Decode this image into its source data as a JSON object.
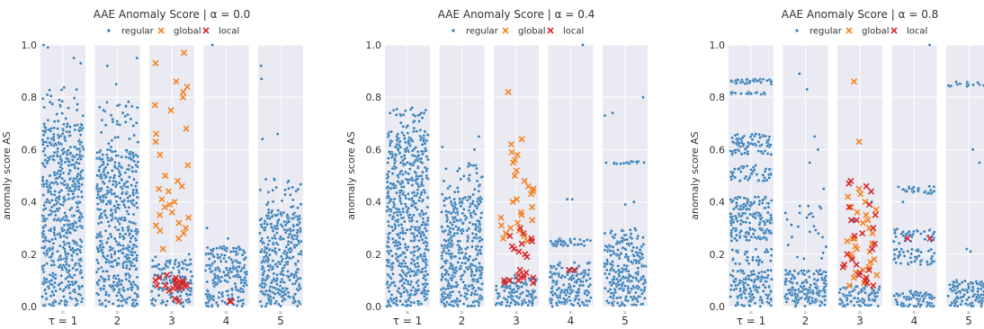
{
  "chart_data": [
    {
      "type": "scatter",
      "title": "AAE Anomaly Score | α = 0.0",
      "ylabel": "anomaly score AS",
      "ylim": [
        0.0,
        1.0
      ],
      "yticks": [
        "0.0",
        "0.2",
        "0.4",
        "0.6",
        "0.8",
        "1.0"
      ],
      "categories": [
        "τ = 1",
        "2",
        "3",
        "4",
        "5"
      ],
      "legend": {
        "placement": "top",
        "entries": [
          "regular",
          "global",
          "local"
        ]
      },
      "series": [
        {
          "name": "regular",
          "marker": "dot",
          "groups": [
            {
              "category": "τ = 1",
              "bands": [
                [
                  0.0,
                  0.7,
                  620
                ],
                [
                  0.7,
                  0.84,
                  25
                ]
              ],
              "extra": [
                0.99,
                1.0,
                0.95,
                0.93
              ]
            },
            {
              "category": "2",
              "bands": [
                [
                  0.0,
                  0.6,
                  520
                ],
                [
                  0.6,
                  0.8,
                  35
                ]
              ],
              "extra": [
                0.92,
                0.95,
                0.85
              ]
            },
            {
              "category": "3",
              "bands": [
                [
                  0.0,
                  0.18,
                  140
                ]
              ],
              "extra": [
                0.19,
                0.2
              ]
            },
            {
              "category": "4",
              "bands": [
                [
                  0.0,
                  0.23,
                  220
                ]
              ],
              "extra": [
                0.3,
                1.0,
                0.26
              ]
            },
            {
              "category": "5",
              "bands": [
                [
                  0.0,
                  0.36,
                  360
                ],
                [
                  0.36,
                  0.49,
                  30
                ]
              ],
              "extra": [
                0.92,
                0.87,
                0.66,
                0.64,
                0.02,
                0.01
              ]
            }
          ]
        },
        {
          "name": "global",
          "marker": "x",
          "groups": [
            {
              "category": "3",
              "values": [
                0.97,
                0.93,
                0.86,
                0.84,
                0.82,
                0.8,
                0.77,
                0.75,
                0.68,
                0.66,
                0.63,
                0.58,
                0.54,
                0.5,
                0.48,
                0.46,
                0.44,
                0.41,
                0.39,
                0.36,
                0.34,
                0.32,
                0.3,
                0.28,
                0.26,
                0.38,
                0.45,
                0.22,
                0.31,
                0.35,
                0.4,
                0.29
              ]
            }
          ]
        },
        {
          "name": "local",
          "marker": "x",
          "groups": [
            {
              "category": "3",
              "values": [
                0.12,
                0.11,
                0.1,
                0.09,
                0.08,
                0.08,
                0.07,
                0.09,
                0.1,
                0.06,
                0.08,
                0.07,
                0.11,
                0.09,
                0.1,
                0.08,
                0.09,
                0.07,
                0.03,
                0.02,
                0.08,
                0.1
              ]
            },
            {
              "category": "4",
              "values": [
                0.02,
                0.02
              ]
            }
          ]
        }
      ]
    },
    {
      "type": "scatter",
      "title": "AAE Anomaly Score | α = 0.4",
      "ylabel": "anomaly score AS",
      "ylim": [
        0.0,
        1.0
      ],
      "yticks": [
        "0.0",
        "0.2",
        "0.4",
        "0.6",
        "0.8",
        "1.0"
      ],
      "categories": [
        "τ = 1",
        "2",
        "3",
        "4",
        "5"
      ],
      "legend": {
        "placement": "top",
        "entries": [
          "regular",
          "global",
          "local"
        ]
      },
      "series": [
        {
          "name": "regular",
          "marker": "dot",
          "groups": [
            {
              "category": "τ = 1",
              "bands": [
                [
                  0.0,
                  0.67,
                  620
                ],
                [
                  0.67,
                  0.76,
                  25
                ]
              ],
              "extra": [
                0.75,
                0.76
              ]
            },
            {
              "category": "2",
              "bands": [
                [
                  0.0,
                  0.42,
                  420
                ],
                [
                  0.42,
                  0.55,
                  30
                ]
              ],
              "extra": [
                0.65,
                0.61,
                0.6
              ]
            },
            {
              "category": "3",
              "bands": [
                [
                  0.0,
                  0.11,
                  120
                ]
              ],
              "extra": [
                0.12
              ]
            },
            {
              "category": "4",
              "bands": [
                [
                  0.0,
                  0.17,
                  170
                ],
                [
                  0.23,
                  0.26,
                  40
                ]
              ],
              "extra": [
                0.41,
                0.41,
                1.0
              ]
            },
            {
              "category": "5",
              "bands": [
                [
                  0.0,
                  0.25,
                  250
                ],
                [
                  0.25,
                  0.3,
                  25
                ],
                [
                  0.545,
                  0.555,
                  18
                ]
              ],
              "extra": [
                0.74,
                0.73,
                0.8,
                0.4,
                0.39,
                0.01
              ]
            }
          ]
        },
        {
          "name": "global",
          "marker": "x",
          "groups": [
            {
              "category": "3",
              "values": [
                0.82,
                0.64,
                0.62,
                0.59,
                0.58,
                0.56,
                0.55,
                0.52,
                0.5,
                0.48,
                0.46,
                0.45,
                0.44,
                0.43,
                0.41,
                0.4,
                0.38,
                0.36,
                0.35,
                0.34,
                0.33,
                0.32,
                0.31,
                0.3,
                0.29,
                0.28,
                0.27,
                0.26,
                0.25
              ]
            }
          ]
        },
        {
          "name": "local",
          "marker": "x",
          "groups": [
            {
              "category": "3",
              "values": [
                0.3,
                0.28,
                0.27,
                0.26,
                0.25,
                0.24,
                0.23,
                0.22,
                0.21,
                0.2,
                0.19,
                0.14,
                0.13,
                0.12,
                0.11,
                0.1,
                0.09,
                0.1,
                0.12,
                0.11,
                0.09,
                0.1
              ]
            },
            {
              "category": "4",
              "values": [
                0.14,
                0.14
              ]
            }
          ]
        }
      ]
    },
    {
      "type": "scatter",
      "title": "AAE Anomaly Score | α = 0.8",
      "ylabel": "anomaly score AS",
      "ylim": [
        0.0,
        1.0
      ],
      "yticks": [
        "0.0",
        "0.2",
        "0.4",
        "0.6",
        "0.8",
        "1.0"
      ],
      "categories": [
        "τ = 1",
        "2",
        "3",
        "4",
        "5"
      ],
      "legend": {
        "placement": "top",
        "entries": [
          "regular",
          "global",
          "local"
        ]
      },
      "series": [
        {
          "name": "regular",
          "marker": "dot",
          "groups": [
            {
              "category": "τ = 1",
              "bands": [
                [
                  0.0,
                  0.14,
                  140
                ],
                [
                  0.16,
                  0.22,
                  30
                ],
                [
                  0.25,
                  0.3,
                  60
                ],
                [
                  0.31,
                  0.36,
                  60
                ],
                [
                  0.37,
                  0.42,
                  60
                ],
                [
                  0.48,
                  0.54,
                  50
                ],
                [
                  0.58,
                  0.66,
                  80
                ],
                [
                  0.81,
                  0.82,
                  20
                ],
                [
                  0.85,
                  0.87,
                  40
                ]
              ],
              "extra": []
            },
            {
              "category": "2",
              "bands": [
                [
                  0.0,
                  0.14,
                  160
                ],
                [
                  0.18,
                  0.4,
                  25
                ]
              ],
              "extra": [
                0.89,
                0.83,
                0.65,
                0.6,
                0.55,
                0.45
              ]
            },
            {
              "category": "3",
              "bands": [
                [
                  0.0,
                  0.08,
                  90
                ]
              ],
              "extra": [
                0.4,
                0.33
              ]
            },
            {
              "category": "4",
              "bands": [
                [
                  0.0,
                  0.06,
                  80
                ],
                [
                  0.16,
                  0.22,
                  50
                ],
                [
                  0.24,
                  0.3,
                  40
                ],
                [
                  0.43,
                  0.46,
                  30
                ]
              ],
              "extra": [
                1.0,
                0.4
              ]
            },
            {
              "category": "5",
              "bands": [
                [
                  0.0,
                  0.1,
                  120
                ],
                [
                  0.84,
                  0.86,
                  20
                ]
              ],
              "extra": [
                0.22,
                0.21,
                0.55,
                0.6
              ]
            }
          ]
        },
        {
          "name": "global",
          "marker": "x",
          "groups": [
            {
              "category": "3",
              "values": [
                0.86,
                0.63,
                0.45,
                0.43,
                0.42,
                0.4,
                0.38,
                0.37,
                0.36,
                0.35,
                0.33,
                0.32,
                0.3,
                0.28,
                0.26,
                0.25,
                0.24,
                0.22,
                0.21,
                0.2,
                0.19,
                0.18,
                0.17,
                0.15,
                0.14,
                0.13,
                0.12,
                0.11,
                0.1,
                0.09,
                0.08,
                0.26,
                0.23
              ]
            }
          ]
        },
        {
          "name": "local",
          "marker": "x",
          "groups": [
            {
              "category": "3",
              "values": [
                0.48,
                0.47,
                0.46,
                0.44,
                0.39,
                0.38,
                0.35,
                0.33,
                0.33,
                0.3,
                0.28,
                0.27,
                0.24,
                0.22,
                0.2,
                0.18,
                0.16,
                0.15,
                0.14,
                0.13,
                0.12,
                0.1,
                0.09,
                0.08,
                0.11,
                0.16
              ]
            },
            {
              "category": "4",
              "values": [
                0.26,
                0.26
              ]
            }
          ]
        }
      ]
    }
  ],
  "colors": {
    "regular": "#2f78b4",
    "global": "#f58220",
    "local": "#d62728",
    "panel_background": "#eaeaf2",
    "grid": "#ffffff",
    "text": "#333333"
  },
  "tick_sublabel": "xᵢ"
}
